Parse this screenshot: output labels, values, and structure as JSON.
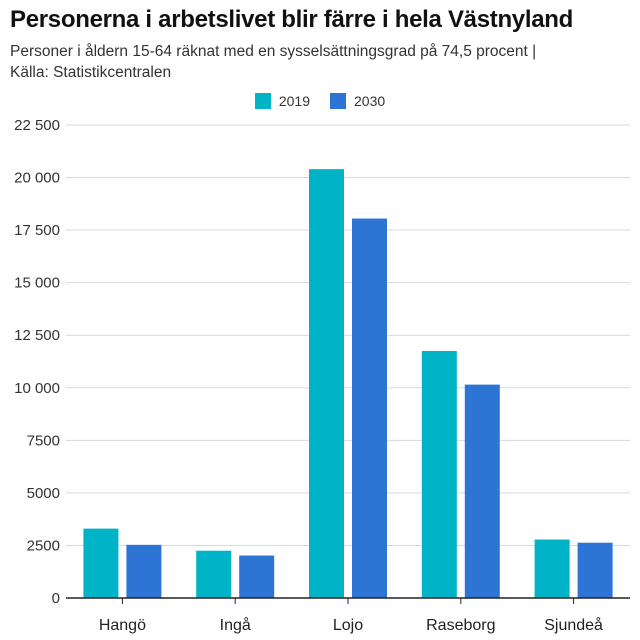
{
  "header": {
    "title": "Personerna i arbetslivet blir färre i hela Västnyland",
    "subtitle_line1": "Personer i åldern 15-64 räknat med en sysselsättningsgrad på 74,5 procent |",
    "subtitle_line2": "Källa: Statistikcentralen"
  },
  "colors": {
    "series_2019": "#00b3c6",
    "series_2030": "#2e74d4",
    "grid": "#d9d9d9",
    "axis": "#222222"
  },
  "chart_data": {
    "type": "bar",
    "title": "Personerna i arbetslivet blir färre i hela Västnyland",
    "xlabel": "",
    "ylabel": "",
    "categories": [
      "Hangö",
      "Ingå",
      "Lojo",
      "Raseborg",
      "Sjundeå"
    ],
    "series": [
      {
        "name": "2019",
        "values": [
          3300,
          2250,
          20400,
          11750,
          2780
        ]
      },
      {
        "name": "2030",
        "values": [
          2530,
          2020,
          18050,
          10150,
          2630
        ]
      }
    ],
    "ylim": [
      0,
      22500
    ],
    "yticks": [
      0,
      2500,
      5000,
      7500,
      10000,
      12500,
      15000,
      17500,
      20000,
      22500
    ],
    "ytick_labels": [
      "0",
      "2500",
      "5000",
      "7500",
      "10 000",
      "12 500",
      "15 000",
      "17 500",
      "20 000",
      "22 500"
    ],
    "legend": "top-center",
    "grid": true
  }
}
